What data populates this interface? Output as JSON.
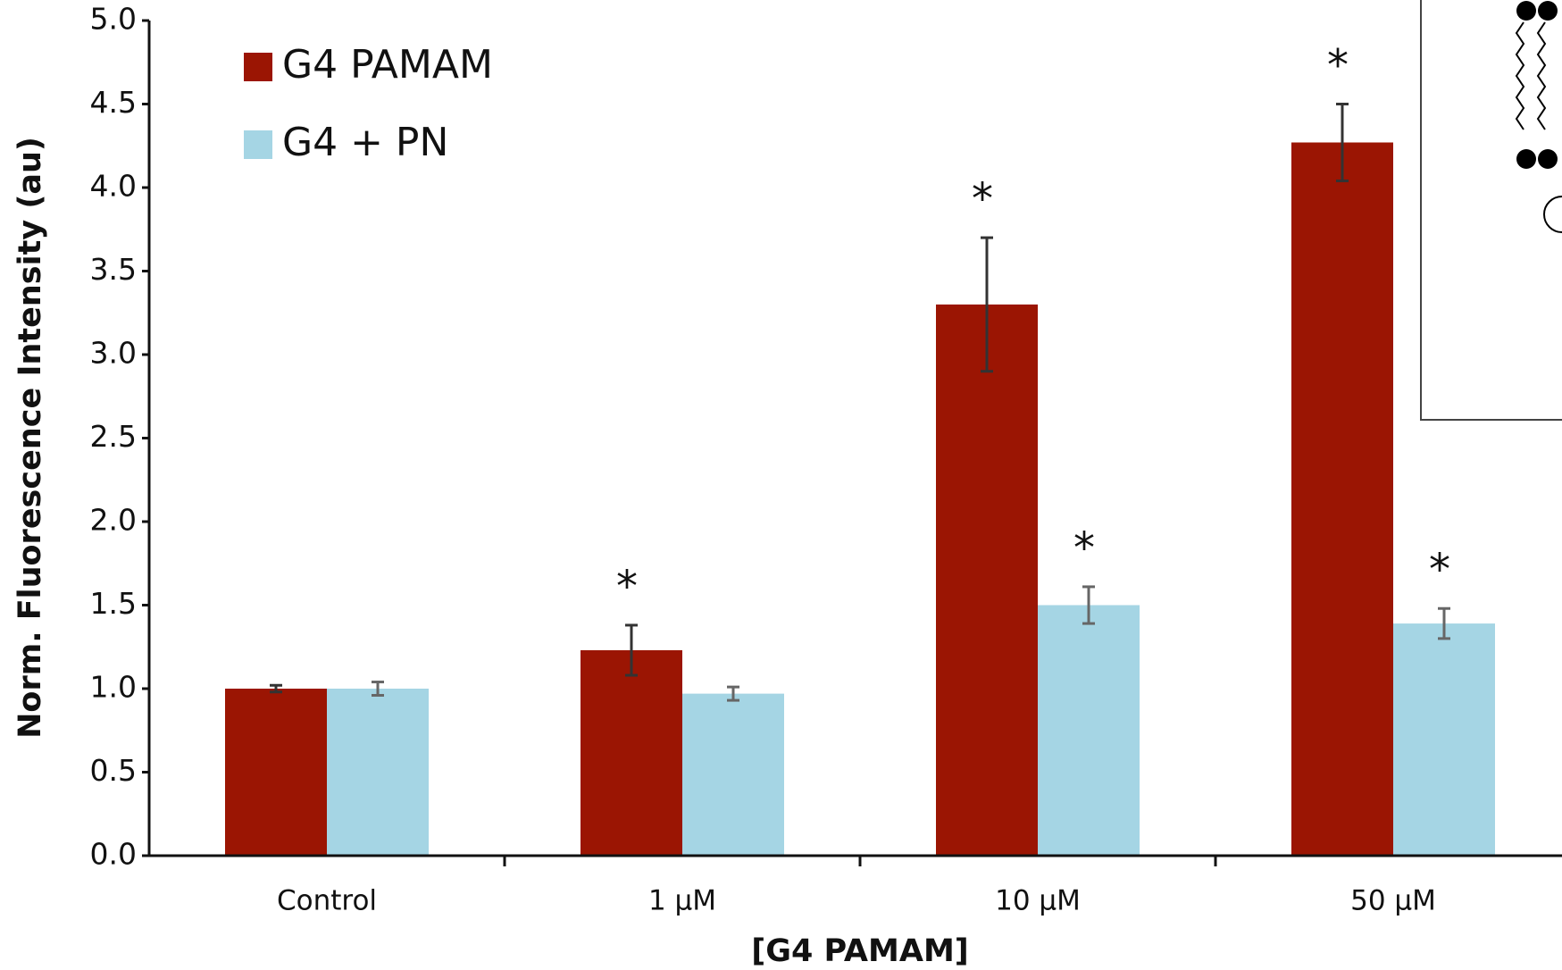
{
  "chart_data": {
    "type": "bar",
    "xlabel": "[G4 PAMAM]",
    "ylabel": "Norm. Fluorescence Intensity (au)",
    "categories": [
      "Control",
      "1 µM",
      "10 µM",
      "50 µM"
    ],
    "series": [
      {
        "name": "G4 PAMAM",
        "color": "#9b1503",
        "values": [
          1.0,
          1.23,
          3.3,
          4.27
        ],
        "errors": [
          0.02,
          0.15,
          0.4,
          0.23
        ],
        "error_color": "#333333",
        "significance": [
          null,
          "*",
          "*",
          "*"
        ]
      },
      {
        "name": "G4 + PN",
        "color": "#a5d5e4",
        "values": [
          1.0,
          0.97,
          1.5,
          1.39
        ],
        "errors": [
          0.04,
          0.04,
          0.11,
          0.09
        ],
        "error_color": "#666666",
        "significance": [
          null,
          null,
          "*",
          "*"
        ]
      }
    ],
    "ylim": [
      0,
      5
    ],
    "yticks": [
      {
        "value": 0,
        "label": "0.0"
      },
      {
        "value": 0.5,
        "label": "0.5"
      },
      {
        "value": 1,
        "label": "1.0"
      },
      {
        "value": 1.5,
        "label": "1.5"
      },
      {
        "value": 2,
        "label": "2.0"
      },
      {
        "value": 2.5,
        "label": "2.5"
      },
      {
        "value": 3,
        "label": "3.0"
      },
      {
        "value": 3.5,
        "label": "3.5"
      },
      {
        "value": 4,
        "label": "4.0"
      },
      {
        "value": 4.5,
        "label": "4.5"
      },
      {
        "value": 5,
        "label": "5.0"
      }
    ],
    "grid": false,
    "legend": "top-left"
  }
}
